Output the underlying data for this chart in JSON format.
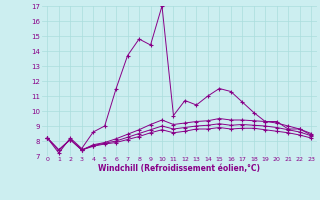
{
  "xlabel": "Windchill (Refroidissement éolien,°C)",
  "xlim": [
    -0.5,
    23.5
  ],
  "ylim": [
    7,
    17
  ],
  "yticks": [
    7,
    8,
    9,
    10,
    11,
    12,
    13,
    14,
    15,
    16,
    17
  ],
  "xticks": [
    0,
    1,
    2,
    3,
    4,
    5,
    6,
    7,
    8,
    9,
    10,
    11,
    12,
    13,
    14,
    15,
    16,
    17,
    18,
    19,
    20,
    21,
    22,
    23
  ],
  "background_color": "#cceef0",
  "line_color": "#880088",
  "grid_color": "#aadddd",
  "line1_x": [
    0,
    1,
    2,
    3,
    4,
    5,
    6,
    7,
    8,
    9,
    10,
    11,
    12,
    13,
    14,
    15,
    16,
    17,
    18,
    19,
    20,
    21,
    22,
    23
  ],
  "line1_y": [
    8.2,
    7.2,
    8.2,
    7.5,
    8.6,
    9.0,
    11.5,
    13.7,
    14.8,
    14.4,
    17.0,
    9.7,
    10.7,
    10.4,
    11.0,
    11.5,
    11.3,
    10.6,
    9.9,
    9.3,
    9.3,
    8.8,
    8.8,
    8.4
  ],
  "line2_x": [
    0,
    1,
    2,
    3,
    4,
    5,
    6,
    7,
    8,
    9,
    10,
    11,
    12,
    13,
    14,
    15,
    16,
    17,
    18,
    19,
    20,
    21,
    22,
    23
  ],
  "line2_y": [
    8.2,
    7.4,
    8.1,
    7.4,
    7.75,
    7.9,
    8.15,
    8.45,
    8.75,
    9.1,
    9.4,
    9.1,
    9.2,
    9.3,
    9.35,
    9.5,
    9.4,
    9.4,
    9.35,
    9.3,
    9.2,
    9.0,
    8.8,
    8.5
  ],
  "line3_x": [
    0,
    1,
    2,
    3,
    4,
    5,
    6,
    7,
    8,
    9,
    10,
    11,
    12,
    13,
    14,
    15,
    16,
    17,
    18,
    19,
    20,
    21,
    22,
    23
  ],
  "line3_y": [
    8.2,
    7.4,
    8.1,
    7.4,
    7.7,
    7.85,
    8.0,
    8.25,
    8.5,
    8.75,
    9.0,
    8.8,
    8.9,
    9.0,
    9.05,
    9.15,
    9.05,
    9.1,
    9.05,
    9.0,
    8.9,
    8.75,
    8.6,
    8.35
  ],
  "line4_x": [
    0,
    1,
    2,
    3,
    4,
    5,
    6,
    7,
    8,
    9,
    10,
    11,
    12,
    13,
    14,
    15,
    16,
    17,
    18,
    19,
    20,
    21,
    22,
    23
  ],
  "line4_y": [
    8.2,
    7.4,
    8.1,
    7.4,
    7.65,
    7.8,
    7.9,
    8.1,
    8.3,
    8.55,
    8.75,
    8.55,
    8.65,
    8.8,
    8.8,
    8.9,
    8.8,
    8.85,
    8.85,
    8.75,
    8.65,
    8.55,
    8.4,
    8.2
  ]
}
